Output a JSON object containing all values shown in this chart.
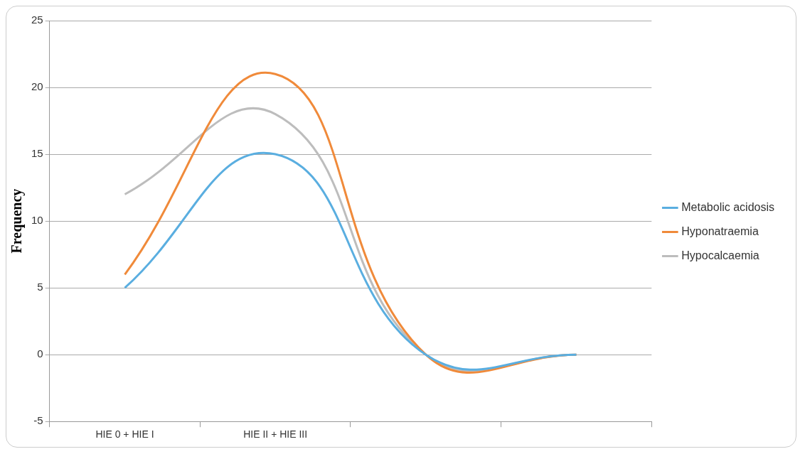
{
  "chart_data": {
    "type": "line",
    "ylabel": "Frequency",
    "categories": [
      "HIE 0 + HIE I",
      "HIE II + HIE III",
      null,
      null
    ],
    "series": [
      {
        "name": "Metabolic acidosis",
        "color": "#5aaee0",
        "values": [
          5,
          15,
          0,
          0
        ]
      },
      {
        "name": "Hyponatraemia",
        "color": "#f08a3a",
        "values": [
          6,
          21,
          0,
          0
        ]
      },
      {
        "name": "Hypocalcaemia",
        "color": "#bdbdbd",
        "values": [
          12,
          18,
          0,
          0
        ]
      }
    ],
    "ylim": [
      -5,
      25
    ],
    "yticks": [
      -5,
      0,
      5,
      10,
      15,
      20,
      25
    ],
    "grid": "y",
    "legend": "right",
    "marker": "none",
    "line_style": "solid"
  }
}
